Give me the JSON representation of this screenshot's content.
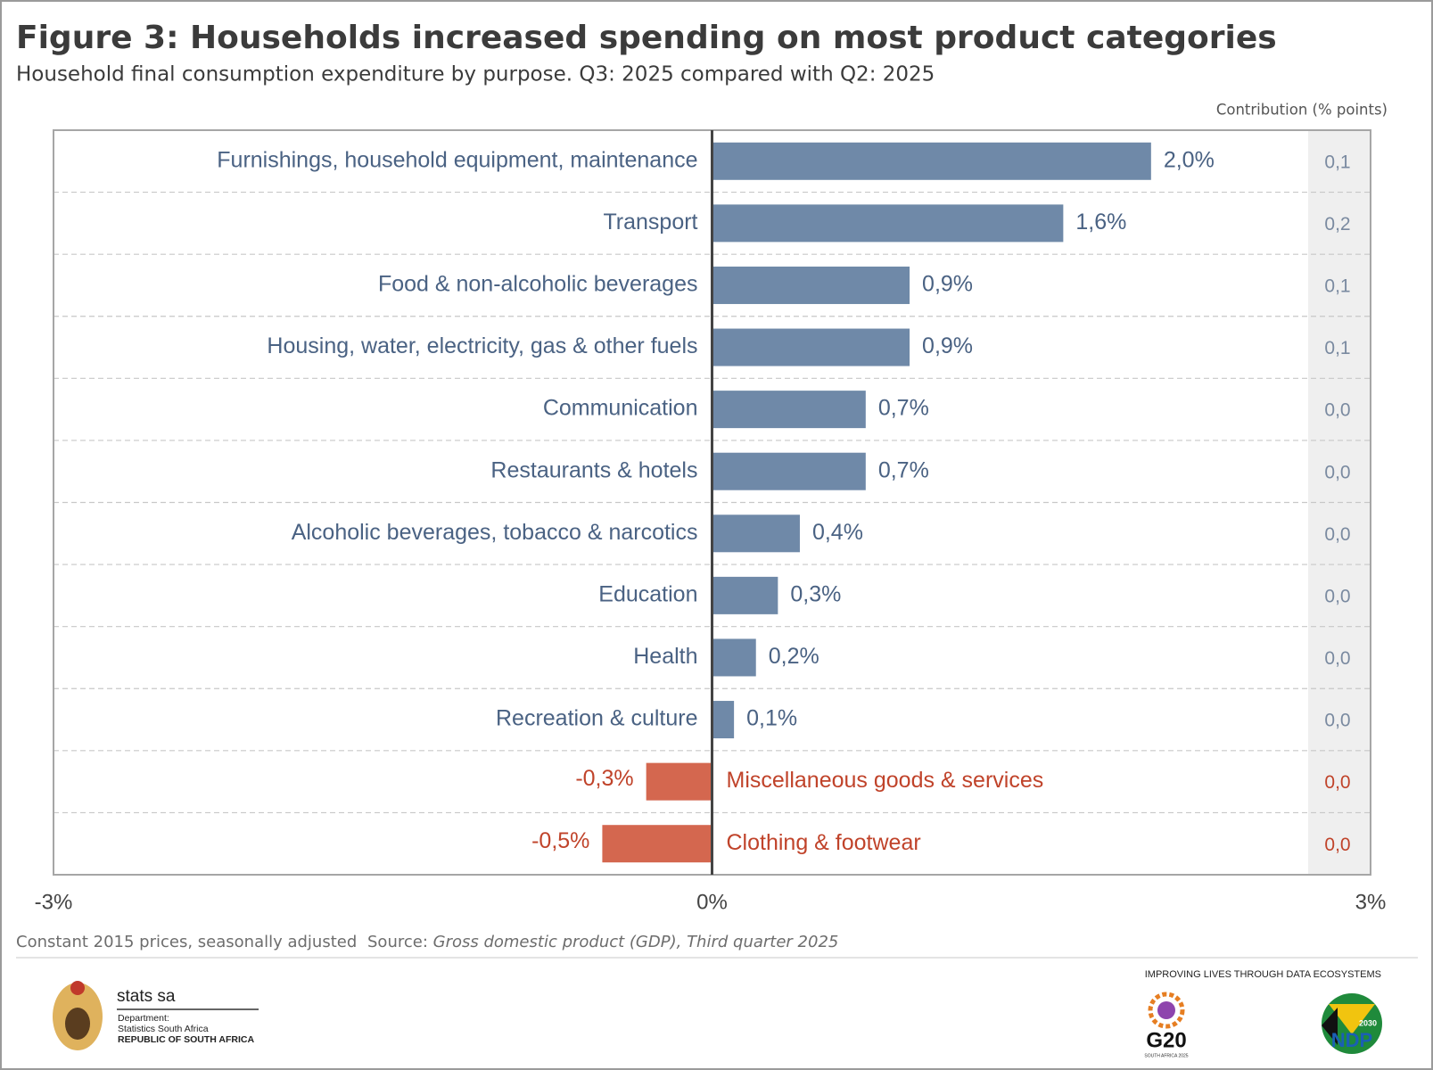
{
  "chart_data": {
    "type": "bar",
    "orientation": "horizontal",
    "title": "Figure 3: Households increased spending on most product categories",
    "subtitle": "Household final consumption expenditure by purpose. Q3: 2025 compared with Q2: 2025",
    "categories": [
      "Furnishings, household equipment, maintenance",
      "Transport",
      "Food & non-alcoholic beverages",
      "Housing, water, electricity, gas & other fuels",
      "Communication",
      "Restaurants & hotels",
      "Alcoholic beverages, tobacco & narcotics",
      "Education",
      "Health",
      "Recreation & culture",
      "Miscellaneous goods & services",
      "Clothing & footwear"
    ],
    "values": [
      2.0,
      1.6,
      0.9,
      0.9,
      0.7,
      0.7,
      0.4,
      0.3,
      0.2,
      0.1,
      -0.3,
      -0.5
    ],
    "value_labels": [
      "2,0%",
      "1,6%",
      "0,9%",
      "0,9%",
      "0,7%",
      "0,7%",
      "0,4%",
      "0,3%",
      "0,2%",
      "0,1%",
      "-0,3%",
      "-0,5%"
    ],
    "colors": {
      "positive": "#6f89a8",
      "negative": "#d4674f"
    },
    "xlim": [
      -3,
      3
    ],
    "xticks": [
      {
        "value": -3,
        "label": "-3%"
      },
      {
        "value": 0,
        "label": "0%"
      },
      {
        "value": 3,
        "label": "3%"
      }
    ],
    "contribution": {
      "title": "Contribution (% points)",
      "values": [
        0.1,
        0.2,
        0.1,
        0.1,
        0.0,
        0.0,
        0.0,
        0.0,
        0.0,
        0.0,
        0.0,
        0.0
      ],
      "value_labels": [
        "0,1",
        "0,2",
        "0,1",
        "0,1",
        "0,0",
        "0,0",
        "0,0",
        "0,0",
        "0,0",
        "0,0",
        "0,0",
        "0,0"
      ]
    },
    "notes": "Constant 2015 prices, seasonally adjusted",
    "source_label": "Source:",
    "source": "Gross domestic product (GDP), Third quarter 2025"
  },
  "branding": {
    "name": "stats sa",
    "department": "Department:",
    "org": "Statistics South Africa",
    "country": "REPUBLIC OF SOUTH AFRICA",
    "slogan": "IMPROVING LIVES THROUGH DATA ECOSYSTEMS",
    "g20": "G20",
    "g20_sub": "SOUTH AFRICA 2025",
    "ndp": "NDP",
    "ndp_year": "2030"
  }
}
